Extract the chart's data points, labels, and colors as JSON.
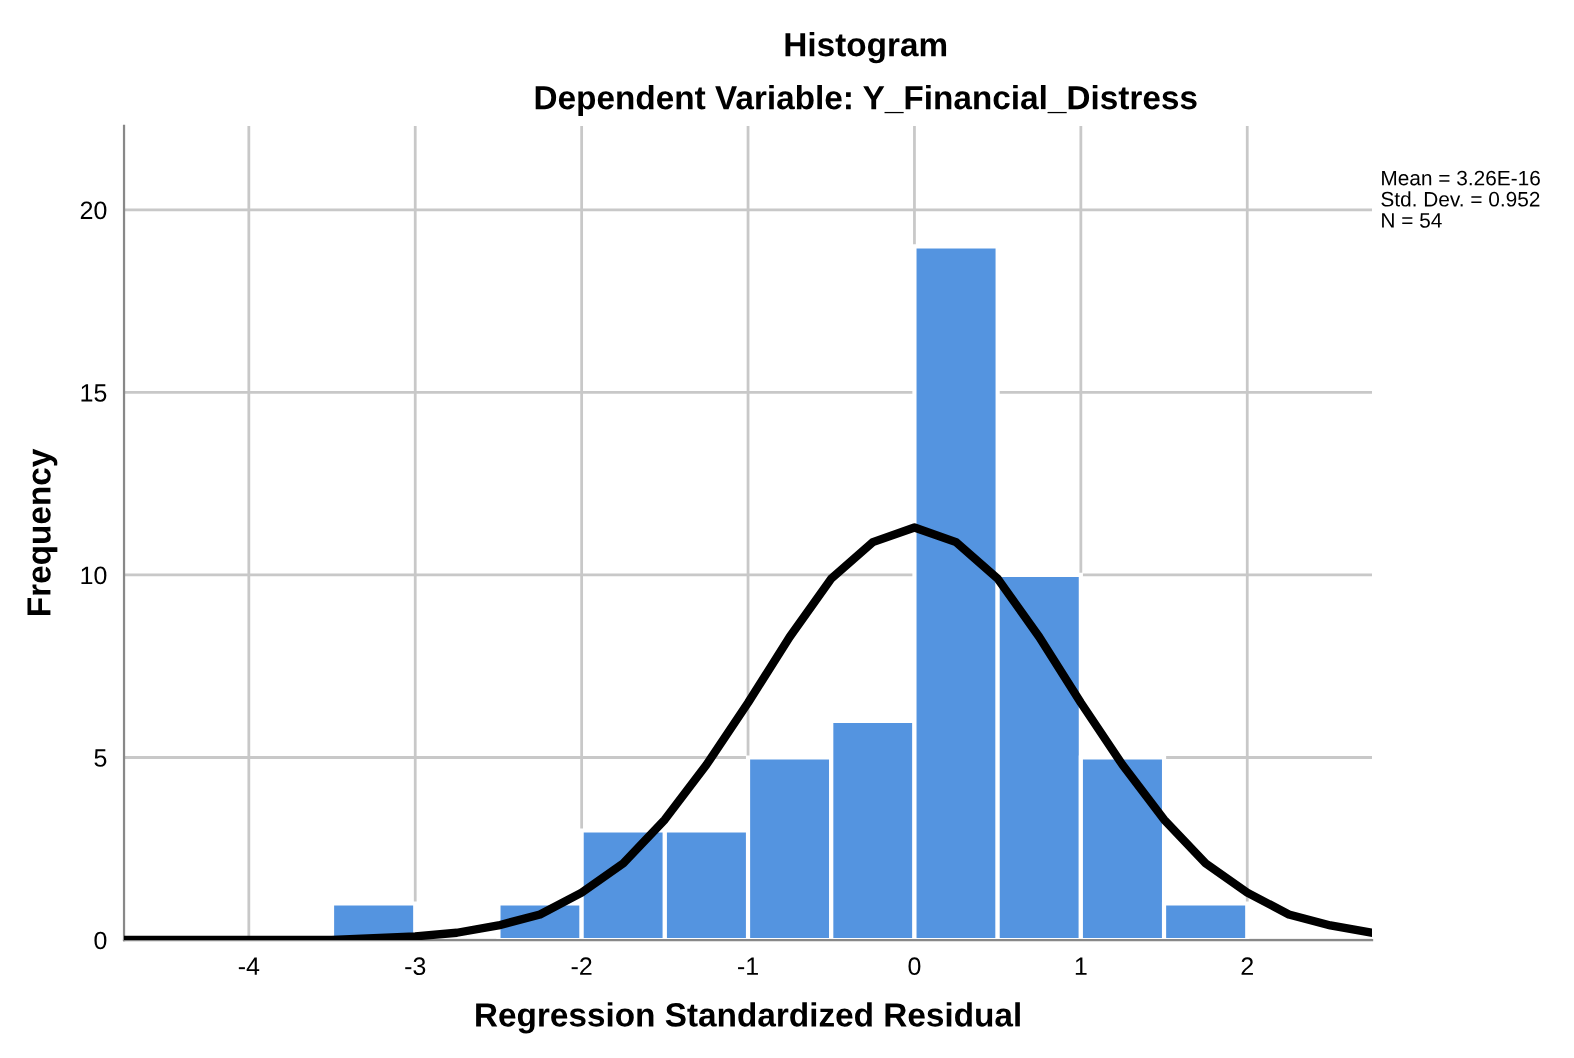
{
  "chart_data": {
    "type": "histogram",
    "title": "Histogram",
    "subtitle": "Dependent Variable: Y_Financial_Distress",
    "xlabel": "Regression Standardized Residual",
    "ylabel": "Frequency",
    "bins": [
      -3.5,
      -3.0,
      -2.5,
      -2.0,
      -1.5,
      -1.0,
      -0.5,
      0.0,
      0.5,
      1.0,
      1.5,
      2.0
    ],
    "values": [
      1,
      0,
      1,
      3,
      3,
      5,
      6,
      19,
      10,
      5,
      1
    ],
    "color": "#5494e0",
    "series": [
      {
        "type": "line",
        "color": "#000000",
        "x": [
          -4.75,
          -4.5,
          -4.0,
          -3.5,
          -3.0,
          -2.75,
          -2.5,
          -2.25,
          -2.0,
          -1.75,
          -1.5,
          -1.25,
          -1.0,
          -0.75,
          -0.5,
          -0.25,
          0.0,
          0.25,
          0.5,
          0.75,
          1.0,
          1.25,
          1.5,
          1.75,
          2.0,
          2.25,
          2.5,
          2.75
        ],
        "values": [
          0.0,
          0.0,
          0.0,
          0.0,
          0.1,
          0.2,
          0.4,
          0.7,
          1.3,
          2.1,
          3.3,
          4.8,
          6.5,
          8.3,
          9.9,
          10.9,
          11.3,
          10.9,
          9.9,
          8.3,
          6.5,
          4.8,
          3.3,
          2.1,
          1.3,
          0.7,
          0.4,
          0.2
        ]
      }
    ],
    "xlim": [
      -4.75,
      2.75
    ],
    "ylim": [
      0,
      22.3
    ],
    "xticks": [
      -4,
      -3,
      -2,
      -1,
      0,
      1,
      2
    ],
    "yticks": [
      0,
      5,
      10,
      15,
      20
    ],
    "grid": true,
    "annotations": [
      "Mean = 3.26E-16",
      "Std. Dev. = 0.952",
      "N = 54"
    ]
  }
}
